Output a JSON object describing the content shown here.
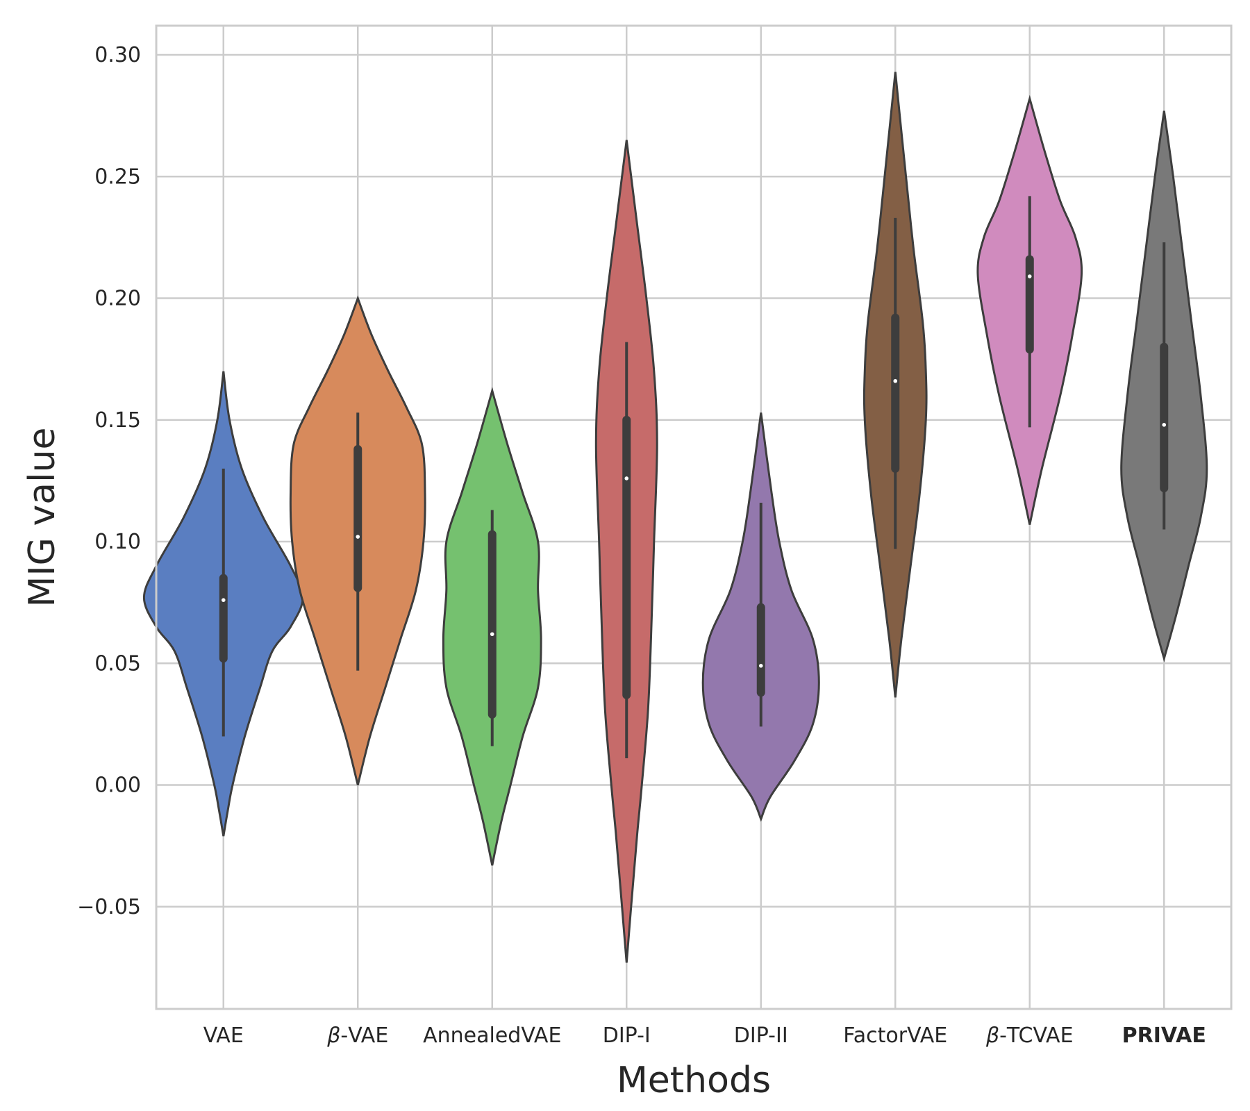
{
  "chart_data": {
    "type": "violin",
    "xlabel": "Methods",
    "ylabel": "MIG value",
    "ylim": [
      -0.092,
      0.312
    ],
    "yticks": [
      -0.05,
      0.0,
      0.05,
      0.1,
      0.15,
      0.2,
      0.25,
      0.3
    ],
    "ytick_labels": [
      "−0.05",
      "0.00",
      "0.05",
      "0.10",
      "0.15",
      "0.20",
      "0.25",
      "0.30"
    ],
    "grid": true,
    "categories": [
      {
        "label": "VAE",
        "label_prefix": "",
        "bold": false,
        "color": "#5a7ec1",
        "range": [
          -0.021,
          0.17
        ],
        "widths": [
          [
            -0.021,
            0
          ],
          [
            -0.01,
            0.015
          ],
          [
            0.0,
            0.03
          ],
          [
            0.02,
            0.07
          ],
          [
            0.04,
            0.12
          ],
          [
            0.055,
            0.16
          ],
          [
            0.065,
            0.22
          ],
          [
            0.077,
            0.26
          ],
          [
            0.09,
            0.22
          ],
          [
            0.11,
            0.13
          ],
          [
            0.13,
            0.06
          ],
          [
            0.15,
            0.02
          ],
          [
            0.17,
            0
          ]
        ],
        "whisker": [
          0.02,
          0.13
        ],
        "q1": 0.052,
        "q3": 0.085,
        "median": 0.076
      },
      {
        "label": "VAE",
        "label_prefix": "β-",
        "bold": false,
        "color": "#d78a5c",
        "range": [
          0.0,
          0.2
        ],
        "widths": [
          [
            0.0,
            0
          ],
          [
            0.02,
            0.04
          ],
          [
            0.04,
            0.09
          ],
          [
            0.06,
            0.14
          ],
          [
            0.08,
            0.19
          ],
          [
            0.1,
            0.215
          ],
          [
            0.12,
            0.22
          ],
          [
            0.14,
            0.21
          ],
          [
            0.155,
            0.16
          ],
          [
            0.17,
            0.1
          ],
          [
            0.185,
            0.045
          ],
          [
            0.2,
            0
          ]
        ],
        "whisker": [
          0.047,
          0.153
        ],
        "q1": 0.081,
        "q3": 0.138,
        "median": 0.102
      },
      {
        "label": "AnnealedVAE",
        "label_prefix": "",
        "bold": false,
        "color": "#75c16f",
        "range": [
          -0.033,
          0.162
        ],
        "widths": [
          [
            -0.033,
            0
          ],
          [
            -0.015,
            0.03
          ],
          [
            0.0,
            0.06
          ],
          [
            0.02,
            0.1
          ],
          [
            0.04,
            0.15
          ],
          [
            0.06,
            0.16
          ],
          [
            0.08,
            0.15
          ],
          [
            0.1,
            0.15
          ],
          [
            0.12,
            0.1
          ],
          [
            0.14,
            0.05
          ],
          [
            0.162,
            0
          ]
        ],
        "whisker": [
          0.016,
          0.113
        ],
        "q1": 0.029,
        "q3": 0.103,
        "median": 0.062
      },
      {
        "label": "DIP-I",
        "label_prefix": "",
        "bold": false,
        "color": "#c66b6a",
        "range": [
          -0.073,
          0.265
        ],
        "widths": [
          [
            -0.073,
            0
          ],
          [
            -0.05,
            0.015
          ],
          [
            -0.02,
            0.035
          ],
          [
            0.0,
            0.05
          ],
          [
            0.03,
            0.07
          ],
          [
            0.06,
            0.08
          ],
          [
            0.1,
            0.09
          ],
          [
            0.14,
            0.1
          ],
          [
            0.17,
            0.09
          ],
          [
            0.2,
            0.065
          ],
          [
            0.23,
            0.035
          ],
          [
            0.265,
            0
          ]
        ],
        "whisker": [
          0.011,
          0.182
        ],
        "q1": 0.037,
        "q3": 0.15,
        "median": 0.126
      },
      {
        "label": "DIP-II",
        "label_prefix": "",
        "bold": false,
        "color": "#9378ad",
        "range": [
          -0.014,
          0.153
        ],
        "widths": [
          [
            -0.014,
            0
          ],
          [
            -0.005,
            0.03
          ],
          [
            0.01,
            0.11
          ],
          [
            0.025,
            0.17
          ],
          [
            0.042,
            0.19
          ],
          [
            0.06,
            0.17
          ],
          [
            0.08,
            0.1
          ],
          [
            0.1,
            0.06
          ],
          [
            0.12,
            0.035
          ],
          [
            0.153,
            0
          ]
        ],
        "whisker": [
          0.024,
          0.116
        ],
        "q1": 0.038,
        "q3": 0.073,
        "median": 0.049
      },
      {
        "label": "FactorVAE",
        "label_prefix": "",
        "bold": false,
        "color": "#835f45",
        "range": [
          0.036,
          0.293
        ],
        "widths": [
          [
            0.036,
            0
          ],
          [
            0.06,
            0.02
          ],
          [
            0.09,
            0.05
          ],
          [
            0.12,
            0.08
          ],
          [
            0.15,
            0.1
          ],
          [
            0.17,
            0.1
          ],
          [
            0.19,
            0.09
          ],
          [
            0.22,
            0.06
          ],
          [
            0.25,
            0.035
          ],
          [
            0.293,
            0
          ]
        ],
        "whisker": [
          0.097,
          0.233
        ],
        "q1": 0.13,
        "q3": 0.192,
        "median": 0.166
      },
      {
        "label": "TCVAE",
        "label_prefix": "β-",
        "bold": false,
        "color": "#d08bbe",
        "range": [
          0.107,
          0.282
        ],
        "widths": [
          [
            0.107,
            0
          ],
          [
            0.13,
            0.04
          ],
          [
            0.16,
            0.1
          ],
          [
            0.185,
            0.14
          ],
          [
            0.21,
            0.17
          ],
          [
            0.225,
            0.15
          ],
          [
            0.24,
            0.1
          ],
          [
            0.26,
            0.05
          ],
          [
            0.282,
            0
          ]
        ],
        "whisker": [
          0.147,
          0.242
        ],
        "q1": 0.179,
        "q3": 0.216,
        "median": 0.209
      },
      {
        "label": "PRIVAE",
        "label_prefix": "",
        "bold": true,
        "color": "#797979",
        "range": [
          0.052,
          0.277
        ],
        "widths": [
          [
            0.052,
            0
          ],
          [
            0.07,
            0.04
          ],
          [
            0.09,
            0.08
          ],
          [
            0.11,
            0.12
          ],
          [
            0.13,
            0.14
          ],
          [
            0.16,
            0.12
          ],
          [
            0.19,
            0.09
          ],
          [
            0.22,
            0.06
          ],
          [
            0.25,
            0.03
          ],
          [
            0.277,
            0
          ]
        ],
        "whisker": [
          0.105,
          0.223
        ],
        "q1": 0.122,
        "q3": 0.18,
        "median": 0.148
      }
    ]
  }
}
